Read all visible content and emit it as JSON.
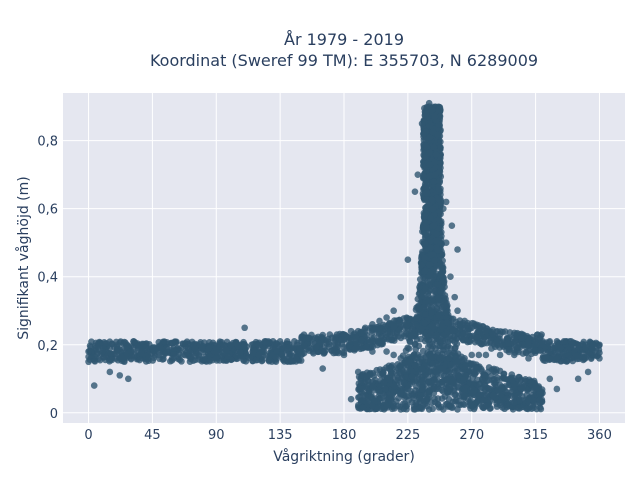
{
  "chart_data": {
    "type": "scatter",
    "title": "År 1979 - 2019",
    "subtitle": "Koordinat (Sweref 99 TM): E 355703, N 6289009",
    "xlabel": "Vågriktning (grader)",
    "ylabel": "Signifikant våghöjd (m)",
    "xlim": [
      -18,
      378
    ],
    "ylim": [
      -0.03,
      0.94
    ],
    "x_ticks": [
      0,
      45,
      90,
      135,
      180,
      225,
      270,
      315,
      360
    ],
    "x_tick_labels": [
      "0",
      "45",
      "90",
      "135",
      "180",
      "225",
      "270",
      "315",
      "360"
    ],
    "y_ticks": [
      0,
      0.2,
      0.4,
      0.6,
      0.8
    ],
    "y_tick_labels": [
      "0",
      "0,2",
      "0,4",
      "0,6",
      "0,8"
    ],
    "grid": true,
    "legend": "none",
    "colors": {
      "marker": "#2f5670",
      "plot_bg": "#e5e7f0",
      "grid": "#ffffff"
    },
    "series": [
      {
        "x": [
          0,
          5,
          10,
          15,
          20,
          25,
          30,
          35,
          40,
          45,
          50,
          55,
          60,
          65,
          70,
          75,
          80,
          85,
          90,
          95,
          100,
          105,
          110,
          115,
          120,
          125,
          130,
          135,
          140,
          145,
          150,
          155,
          160,
          165,
          170,
          175,
          180,
          185,
          190,
          195,
          200,
          205,
          210,
          215,
          220,
          225,
          230,
          235,
          238,
          240,
          242,
          245,
          248,
          250,
          252,
          255,
          258,
          260,
          265,
          270,
          275,
          280,
          285,
          290,
          295,
          300,
          305,
          310,
          315,
          320,
          325,
          330,
          335,
          340,
          345,
          350,
          355,
          360,
          0,
          30,
          60,
          90,
          120,
          150,
          180,
          200,
          210,
          215,
          220,
          225,
          230,
          235,
          240,
          245,
          250,
          255,
          260,
          265,
          270,
          275,
          280,
          290,
          300,
          310,
          320,
          330,
          340,
          350,
          360,
          185,
          195,
          205,
          215,
          225,
          235,
          245,
          255,
          265,
          275,
          285,
          295,
          305,
          315,
          325,
          200,
          210,
          220,
          230,
          240,
          250,
          260,
          270,
          280,
          290,
          300,
          310,
          4,
          15,
          22,
          28,
          110,
          165,
          190,
          232,
          236,
          240,
          244,
          248,
          252,
          256,
          260,
          330,
          345,
          352
        ],
        "y": [
          0.18,
          0.19,
          0.18,
          0.19,
          0.18,
          0.19,
          0.18,
          0.19,
          0.19,
          0.19,
          0.19,
          0.19,
          0.19,
          0.19,
          0.19,
          0.19,
          0.19,
          0.19,
          0.19,
          0.2,
          0.2,
          0.2,
          0.2,
          0.2,
          0.2,
          0.21,
          0.21,
          0.21,
          0.21,
          0.21,
          0.21,
          0.22,
          0.22,
          0.22,
          0.23,
          0.23,
          0.23,
          0.24,
          0.24,
          0.25,
          0.26,
          0.27,
          0.28,
          0.3,
          0.34,
          0.45,
          0.65,
          0.85,
          0.88,
          0.9,
          0.89,
          0.86,
          0.72,
          0.6,
          0.5,
          0.4,
          0.34,
          0.3,
          0.27,
          0.25,
          0.24,
          0.24,
          0.23,
          0.23,
          0.22,
          0.22,
          0.22,
          0.21,
          0.21,
          0.21,
          0.21,
          0.21,
          0.21,
          0.21,
          0.2,
          0.2,
          0.2,
          0.2,
          0.15,
          0.16,
          0.16,
          0.16,
          0.17,
          0.17,
          0.17,
          0.18,
          0.18,
          0.17,
          0.16,
          0.15,
          0.14,
          0.13,
          0.12,
          0.12,
          0.13,
          0.14,
          0.15,
          0.16,
          0.17,
          0.17,
          0.17,
          0.17,
          0.17,
          0.16,
          0.16,
          0.16,
          0.16,
          0.16,
          0.16,
          0.04,
          0.05,
          0.06,
          0.06,
          0.07,
          0.07,
          0.07,
          0.06,
          0.05,
          0.05,
          0.05,
          0.06,
          0.07,
          0.08,
          0.1,
          0.02,
          0.02,
          0.01,
          0.01,
          0.01,
          0.01,
          0.01,
          0.02,
          0.02,
          0.03,
          0.03,
          0.04,
          0.08,
          0.12,
          0.11,
          0.1,
          0.25,
          0.13,
          0.12,
          0.7,
          0.82,
          0.91,
          0.87,
          0.78,
          0.62,
          0.55,
          0.48,
          0.07,
          0.1,
          0.12
        ]
      }
    ]
  }
}
